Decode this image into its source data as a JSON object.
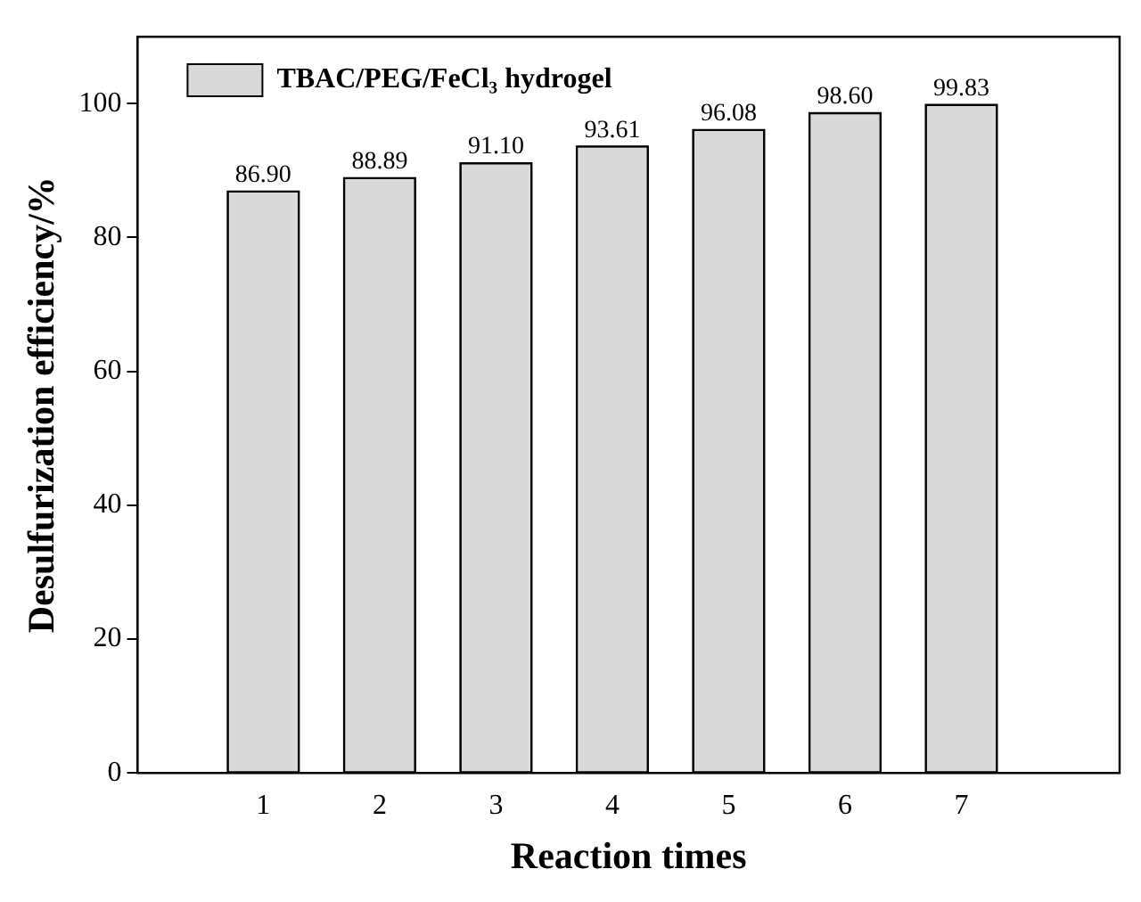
{
  "chart_data": {
    "type": "bar",
    "xlabel": "Reaction times",
    "ylabel": "Desulfurization efficiency/%",
    "x": [
      1,
      2,
      3,
      4,
      5,
      6,
      7
    ],
    "xlim": [
      -0.08,
      8.36
    ],
    "xticks": [
      1,
      2,
      3,
      4,
      5,
      6,
      7
    ],
    "ylim": [
      0,
      110
    ],
    "yticks": [
      0,
      20,
      40,
      60,
      80,
      100
    ],
    "series": [
      {
        "name": "TBAC/PEG/FeCl₃ hydrogel",
        "color": "#d9d9d9",
        "values": [
          86.9,
          88.89,
          91.1,
          93.61,
          96.08,
          98.6,
          99.83
        ],
        "value_labels": [
          "86.90",
          "88.89",
          "91.10",
          "93.61",
          "96.08",
          "98.60",
          "99.83"
        ]
      }
    ],
    "legend": "top left",
    "grid": false
  }
}
